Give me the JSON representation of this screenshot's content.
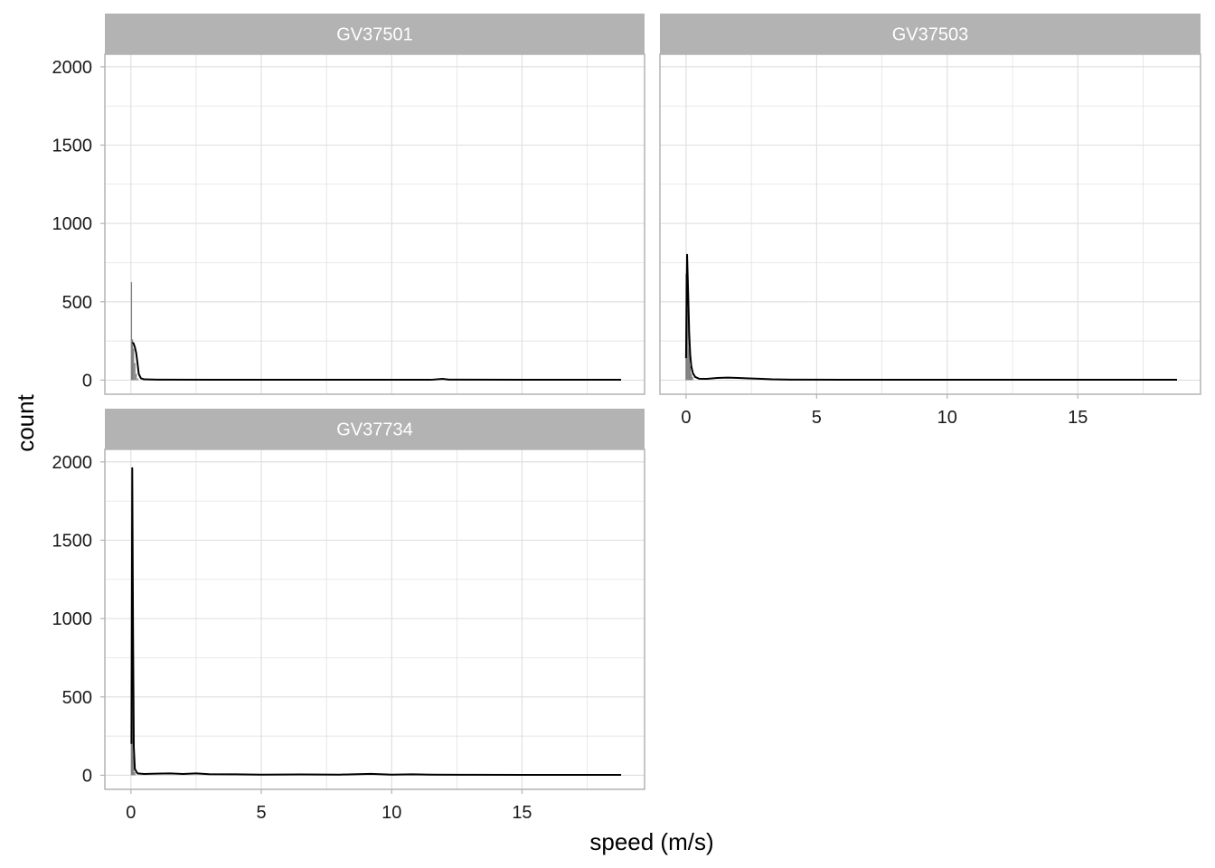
{
  "chart_data": {
    "type": "histogram",
    "xlabel": "speed (m/s)",
    "ylabel": "count",
    "xlim": [
      -1,
      19.7
    ],
    "ylim": [
      -90,
      2080
    ],
    "x_ticks": [
      0,
      5,
      10,
      15
    ],
    "y_ticks": [
      0,
      500,
      1000,
      1500,
      2000
    ],
    "grid": true,
    "colors": {
      "bars": "#808080",
      "density_line": "#000000",
      "strip": "#b3b3b3",
      "panel_border": "#b3b3b3",
      "grid": "#dedede"
    },
    "panels": [
      {
        "name": "GV37501",
        "bars": [
          {
            "x": 0.02,
            "count": 625
          },
          {
            "x": 0.06,
            "count": 260
          },
          {
            "x": 0.1,
            "count": 200
          },
          {
            "x": 0.15,
            "count": 110
          },
          {
            "x": 0.2,
            "count": 40
          },
          {
            "x": 0.26,
            "count": 10
          }
        ],
        "density_line": [
          [
            0.05,
            240
          ],
          [
            0.1,
            235
          ],
          [
            0.15,
            210
          ],
          [
            0.2,
            175
          ],
          [
            0.25,
            110
          ],
          [
            0.3,
            40
          ],
          [
            0.38,
            12
          ],
          [
            0.5,
            5
          ],
          [
            1.0,
            3
          ],
          [
            3.0,
            2
          ],
          [
            6.0,
            2
          ],
          [
            11.5,
            2
          ],
          [
            11.95,
            8
          ],
          [
            12.2,
            3
          ],
          [
            15.0,
            2
          ],
          [
            18.8,
            2
          ]
        ]
      },
      {
        "name": "GV37503",
        "bars": [
          {
            "x": 0.0,
            "count": 680
          },
          {
            "x": 0.04,
            "count": 800
          },
          {
            "x": 0.08,
            "count": 450
          },
          {
            "x": 0.12,
            "count": 200
          },
          {
            "x": 0.16,
            "count": 90
          },
          {
            "x": 0.2,
            "count": 40
          },
          {
            "x": 0.25,
            "count": 20
          }
        ],
        "density_line": [
          [
            0.0,
            140
          ],
          [
            0.04,
            800
          ],
          [
            0.08,
            560
          ],
          [
            0.12,
            300
          ],
          [
            0.16,
            160
          ],
          [
            0.2,
            90
          ],
          [
            0.26,
            45
          ],
          [
            0.35,
            20
          ],
          [
            0.5,
            9
          ],
          [
            0.8,
            8
          ],
          [
            1.2,
            14
          ],
          [
            1.6,
            16
          ],
          [
            2.0,
            14
          ],
          [
            2.4,
            11
          ],
          [
            2.8,
            9
          ],
          [
            3.3,
            5
          ],
          [
            4.0,
            3
          ],
          [
            6.0,
            2
          ],
          [
            10.0,
            2
          ],
          [
            15.0,
            2
          ],
          [
            18.8,
            2
          ]
        ]
      },
      {
        "name": "GV37734",
        "bars": [
          {
            "x": 0.02,
            "count": 600
          },
          {
            "x": 0.06,
            "count": 560
          },
          {
            "x": 0.1,
            "count": 130
          },
          {
            "x": 0.15,
            "count": 20
          }
        ],
        "density_line": [
          [
            0.02,
            200
          ],
          [
            0.05,
            1960
          ],
          [
            0.08,
            950
          ],
          [
            0.11,
            180
          ],
          [
            0.15,
            40
          ],
          [
            0.25,
            12
          ],
          [
            0.5,
            8
          ],
          [
            1.0,
            10
          ],
          [
            1.5,
            12
          ],
          [
            2.0,
            8
          ],
          [
            2.5,
            12
          ],
          [
            3.0,
            7
          ],
          [
            4.0,
            6
          ],
          [
            5.0,
            4
          ],
          [
            6.5,
            5
          ],
          [
            8.0,
            4
          ],
          [
            9.2,
            9
          ],
          [
            10.0,
            4
          ],
          [
            10.8,
            6
          ],
          [
            11.5,
            4
          ],
          [
            13.0,
            3
          ],
          [
            15.0,
            2
          ],
          [
            18.8,
            2
          ]
        ]
      }
    ]
  }
}
